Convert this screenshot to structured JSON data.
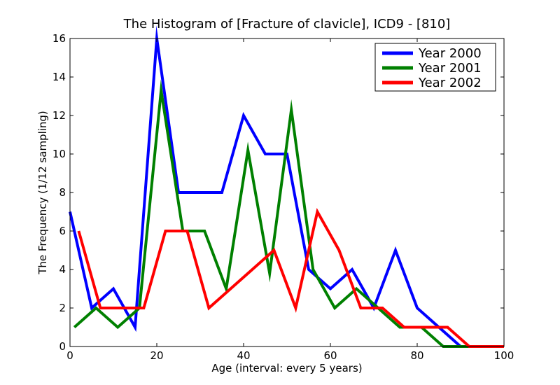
{
  "chart_data": {
    "type": "line",
    "title": "The Histogram of [Fracture of clavicle], ICD9 - [810]",
    "xlabel": "Age (interval: every 5 years)",
    "ylabel": "The Frequency (1/12 sampling)",
    "xlim": [
      0,
      100
    ],
    "ylim": [
      0,
      16
    ],
    "xticks": [
      0,
      20,
      40,
      60,
      80,
      100
    ],
    "yticks": [
      0,
      2,
      4,
      6,
      8,
      10,
      12,
      14,
      16
    ],
    "grid": false,
    "legend_position": "top-right",
    "series": [
      {
        "name": "Year 2000",
        "color": "#0000ff",
        "x": [
          0,
          5,
          10,
          15,
          20,
          25,
          30,
          35,
          40,
          45,
          50,
          55,
          60,
          65,
          70,
          75,
          80,
          85,
          90,
          95,
          100
        ],
        "y": [
          7,
          2,
          3,
          1,
          16,
          8,
          8,
          8,
          12,
          10,
          10,
          4,
          3,
          4,
          2,
          5,
          2,
          1,
          0,
          0,
          0
        ]
      },
      {
        "name": "Year 2001",
        "color": "#008000",
        "x": [
          1,
          6,
          11,
          16,
          21,
          26,
          31,
          36,
          41,
          46,
          51,
          56,
          61,
          66,
          71,
          76,
          81,
          86,
          91,
          96,
          100
        ],
        "y": [
          1,
          2,
          1,
          2,
          13.3,
          6,
          6,
          3,
          10.2,
          3.8,
          12.3,
          4,
          2,
          3,
          2,
          1,
          1,
          0,
          0,
          0,
          0
        ]
      },
      {
        "name": "Year 2002",
        "color": "#ff0000",
        "x": [
          2,
          7,
          12,
          17,
          22,
          27,
          32,
          37,
          42,
          47,
          52,
          57,
          62,
          67,
          72,
          77,
          82,
          87,
          92,
          97,
          100
        ],
        "y": [
          6,
          2,
          2,
          2,
          6,
          6,
          2,
          3,
          4,
          5,
          2,
          7,
          5,
          2,
          2,
          1,
          1,
          1,
          0,
          0,
          0
        ]
      }
    ]
  }
}
